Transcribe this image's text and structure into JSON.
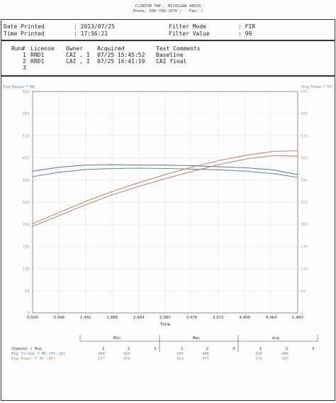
{
  "header": {
    "address_line1": "CLINTON TWP., MICHIGAN  48035",
    "address_line2": "Phone: 586-790-2970 /  - Fax: /"
  },
  "info": {
    "date_label": "Date Printed",
    "date_value": ": 2013/07/25",
    "time_label": "Time Printed",
    "time_value": ": 17:56:21",
    "filter_mode_label": "Filter Mode",
    "filter_mode_value": ": FIR",
    "filter_value_label": "Filter Value",
    "filter_value_value": ": 99"
  },
  "runs": {
    "headers": {
      "run": "Run#",
      "license": "License",
      "owner": "Owner",
      "acquired": "Acquired",
      "comments": "Test Comments"
    },
    "rows": [
      {
        "num": "1",
        "license": "RRD1",
        "owner": "CAI , I",
        "acquired": "07/25 15:45:52",
        "comments": "Baseline"
      },
      {
        "num": "2",
        "license": "RRD1",
        "owner": "CAI , I",
        "acquired": "07/25 16:41:19",
        "comments": "CAI final"
      },
      {
        "num": "3",
        "license": "",
        "owner": "",
        "acquired": "",
        "comments": ""
      }
    ]
  },
  "chart_data": {
    "type": "line",
    "xlabel": "Time",
    "ylabel_left": "Eng Torque T MC",
    "ylabel_right": "Eng Power T MC",
    "xlim": [
      0.5,
      5.46
    ],
    "ylim": [
      0,
      650
    ],
    "x_ticks": [
      "0.500",
      "0.996",
      "1.492",
      "1.988",
      "2.484",
      "2.980",
      "3.476",
      "3.972",
      "4.468",
      "4.964",
      "5.460"
    ],
    "y_ticks": [
      "0",
      "65",
      "130",
      "195",
      "260",
      "325",
      "390",
      "455",
      "520",
      "585",
      "650"
    ],
    "grid": true,
    "series": [
      {
        "axis": "left",
        "color": "#5f7fa0",
        "x": [
          0.5,
          1.0,
          1.5,
          2.0,
          2.5,
          3.0,
          3.5,
          4.0,
          4.5,
          5.0,
          5.46
        ],
        "y": [
          416,
          428,
          434,
          435,
          434,
          434,
          432,
          429,
          426,
          420,
          406
        ]
      },
      {
        "axis": "left",
        "color": "#6a87a8",
        "x": [
          0.5,
          1.0,
          1.5,
          2.0,
          2.5,
          3.0,
          3.5,
          4.0,
          4.5,
          5.0,
          5.46
        ],
        "y": [
          400,
          413,
          421,
          424,
          425,
          424,
          422,
          420,
          416,
          409,
          398
        ]
      },
      {
        "axis": "right",
        "color": "#c08a6a",
        "x": [
          0.5,
          1.0,
          1.5,
          2.0,
          2.5,
          3.0,
          3.5,
          4.0,
          4.5,
          5.0,
          5.46
        ],
        "y": [
          262,
          295,
          328,
          357,
          383,
          407,
          429,
          448,
          463,
          474,
          476
        ]
      },
      {
        "axis": "right",
        "color": "#b98a70",
        "x": [
          0.5,
          1.0,
          1.5,
          2.0,
          2.5,
          3.0,
          3.5,
          4.0,
          4.5,
          5.0,
          5.46
        ],
        "y": [
          254,
          286,
          318,
          347,
          372,
          395,
          416,
          436,
          452,
          462,
          460
        ]
      }
    ]
  },
  "stats": {
    "groups": [
      "Min",
      "Max",
      "Avg"
    ],
    "channel_label": "Channel / Run",
    "run_nums": [
      "1",
      "2",
      "3"
    ],
    "rows": [
      {
        "name": "Eng Torque T MC (Ft-Lb)",
        "min": [
          "404",
          "415",
          ""
        ],
        "max": [
          "435",
          "446",
          ""
        ],
        "avg": [
          "416",
          "446",
          ""
        ]
      },
      {
        "name": "Eng Power T MC (HP)",
        "min": [
          "257",
          "266",
          ""
        ],
        "max": [
          "459",
          "475",
          ""
        ],
        "avg": [
          "378",
          "385",
          ""
        ]
      }
    ]
  }
}
